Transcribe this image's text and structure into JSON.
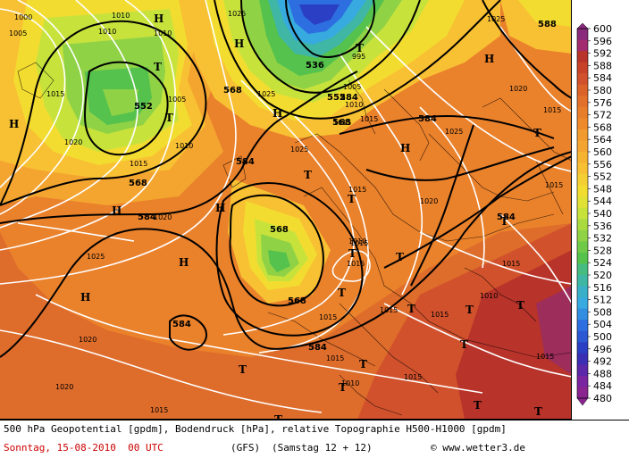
{
  "map": {
    "fill_colors": {
      "violet": "#8a2a7c",
      "deep_red": "#b8332a",
      "red": "#d1512c",
      "orange_dark": "#e2702a",
      "orange": "#ee8a2c",
      "orange_light": "#f4a530",
      "amber": "#f8c033",
      "yellow": "#f3dc30",
      "yellow_green": "#c8e23c",
      "green_light": "#8fd245",
      "green": "#55c24d",
      "teal": "#3fb7a4",
      "cyan": "#37aadf",
      "blue": "#2d6fe0",
      "navy": "#2a3fc4"
    },
    "isobar_labels": [
      {
        "id": "i1000",
        "text": "1000"
      },
      {
        "id": "i1005a",
        "text": "1005"
      },
      {
        "id": "i1010a",
        "text": "1010"
      },
      {
        "id": "i1010b",
        "text": "1010"
      },
      {
        "id": "i1010c",
        "text": "1010"
      },
      {
        "id": "i1015a",
        "text": "1015"
      },
      {
        "id": "i1020a",
        "text": "1020"
      },
      {
        "id": "i1015b",
        "text": "1015"
      },
      {
        "id": "i1005b",
        "text": "1005"
      },
      {
        "id": "i1010d",
        "text": "1010"
      },
      {
        "id": "i1025a",
        "text": "1025"
      },
      {
        "id": "i1025b",
        "text": "1025"
      },
      {
        "id": "i1025c",
        "text": "1025"
      },
      {
        "id": "i1020b",
        "text": "1020"
      },
      {
        "id": "i1015c",
        "text": "1015"
      },
      {
        "id": "i1015d",
        "text": "1015"
      },
      {
        "id": "i1025d",
        "text": "1025"
      },
      {
        "id": "i1025e",
        "text": "1025"
      },
      {
        "id": "i1015e",
        "text": "1015"
      },
      {
        "id": "i1020c",
        "text": "1020"
      },
      {
        "id": "i1015f",
        "text": "1015"
      },
      {
        "id": "i1015g",
        "text": "1015"
      },
      {
        "id": "i1010e",
        "text": "1010"
      },
      {
        "id": "i1015h",
        "text": "1015"
      },
      {
        "id": "i1015i",
        "text": "1015"
      },
      {
        "id": "i1015j",
        "text": "1015"
      },
      {
        "id": "i1010f",
        "text": "1010"
      },
      {
        "id": "i1015k",
        "text": "1015"
      },
      {
        "id": "i1015l",
        "text": "1015"
      },
      {
        "id": "i1025f",
        "text": "1025"
      },
      {
        "id": "i1020d",
        "text": "1020"
      },
      {
        "id": "i1015m",
        "text": "1015"
      },
      {
        "id": "i1015n",
        "text": "1015"
      },
      {
        "id": "i1010g",
        "text": "1010"
      },
      {
        "id": "i1020e",
        "text": "1020"
      },
      {
        "id": "i1015o",
        "text": "1015"
      },
      {
        "id": "i1015p",
        "text": "1015"
      },
      {
        "id": "i1020f",
        "text": "1020"
      },
      {
        "id": "i1015q",
        "text": "1015"
      },
      {
        "id": "i995",
        "text": "995"
      },
      {
        "id": "i1005c",
        "text": "1005"
      },
      {
        "id": "i1010h",
        "text": "1010"
      }
    ],
    "geopotential_labels": [
      {
        "id": "g552a",
        "text": "552"
      },
      {
        "id": "g568a",
        "text": "568"
      },
      {
        "id": "g584a",
        "text": "584"
      },
      {
        "id": "g584b",
        "text": "584"
      },
      {
        "id": "g568b",
        "text": "568"
      },
      {
        "id": "g568c",
        "text": "568"
      },
      {
        "id": "g584c",
        "text": "584"
      },
      {
        "id": "g584d",
        "text": "584"
      },
      {
        "id": "g536",
        "text": "536"
      },
      {
        "id": "g552b",
        "text": "552"
      },
      {
        "id": "g568d",
        "text": "568"
      },
      {
        "id": "g568e",
        "text": "568"
      },
      {
        "id": "g584e",
        "text": "584"
      },
      {
        "id": "g584f",
        "text": "584"
      },
      {
        "id": "g588",
        "text": "588"
      },
      {
        "id": "g584g",
        "text": "584"
      }
    ],
    "pressure_centers": [
      {
        "id": "h1",
        "text": "H"
      },
      {
        "id": "h2",
        "text": "H"
      },
      {
        "id": "h3",
        "text": "H"
      },
      {
        "id": "h4",
        "text": "H"
      },
      {
        "id": "h5",
        "text": "H"
      },
      {
        "id": "h6",
        "text": "H"
      },
      {
        "id": "h7",
        "text": "H"
      },
      {
        "id": "h8",
        "text": "H"
      },
      {
        "id": "h9",
        "text": "H"
      },
      {
        "id": "h10",
        "text": "H"
      },
      {
        "id": "t1",
        "text": "T"
      },
      {
        "id": "t2",
        "text": "T"
      },
      {
        "id": "t3",
        "text": "T"
      },
      {
        "id": "t4",
        "text": "T"
      },
      {
        "id": "t5",
        "text": "T"
      },
      {
        "id": "t6",
        "text": "T"
      },
      {
        "id": "t7",
        "text": "T"
      },
      {
        "id": "t8",
        "text": "T"
      },
      {
        "id": "t9",
        "text": "T"
      },
      {
        "id": "t10",
        "text": "T"
      },
      {
        "id": "t11",
        "text": "T"
      },
      {
        "id": "t12",
        "text": "T"
      },
      {
        "id": "t13",
        "text": "T"
      },
      {
        "id": "t14",
        "text": "T"
      },
      {
        "id": "t15",
        "text": "T"
      },
      {
        "id": "t16",
        "text": "T"
      },
      {
        "id": "t17",
        "text": "T"
      },
      {
        "id": "t18",
        "text": "T"
      },
      {
        "id": "t19",
        "text": "T"
      },
      {
        "id": "t20",
        "text": "T"
      }
    ]
  },
  "legend": {
    "colors": [
      "#8a2a7c",
      "#a32a6e",
      "#b8332a",
      "#c84228",
      "#d1512c",
      "#db6229",
      "#e2702a",
      "#e87d2b",
      "#ee8a2c",
      "#f19a2e",
      "#f4a530",
      "#f6b332",
      "#f8c033",
      "#f4cf33",
      "#f3dc30",
      "#e0e035",
      "#c8e23c",
      "#a9db40",
      "#8fd245",
      "#70ca4a",
      "#55c24d",
      "#47bc80",
      "#3fb7a4",
      "#3ab0c8",
      "#37aadf",
      "#318ee0",
      "#2d6fe0",
      "#2c58d4",
      "#2a3fc4",
      "#3a2fb4",
      "#5a28a8",
      "#7a24a0",
      "#8a2490"
    ],
    "ticks": [
      "600",
      "596",
      "592",
      "588",
      "584",
      "580",
      "576",
      "572",
      "568",
      "564",
      "560",
      "556",
      "552",
      "548",
      "544",
      "540",
      "536",
      "532",
      "528",
      "524",
      "520",
      "516",
      "512",
      "508",
      "504",
      "500",
      "496",
      "492",
      "488",
      "484",
      "480"
    ]
  },
  "caption": {
    "line1": "500 hPa Geopotential [gpdm], Bodendruck [hPa], relative Topographie H500-H1000 [gpdm]",
    "date": "Sonntag, 15-08-2010  00 UTC",
    "model": "(GFS)",
    "run": "(Samstag 12 + 12)",
    "copyright": "© www.wetter3.de"
  }
}
